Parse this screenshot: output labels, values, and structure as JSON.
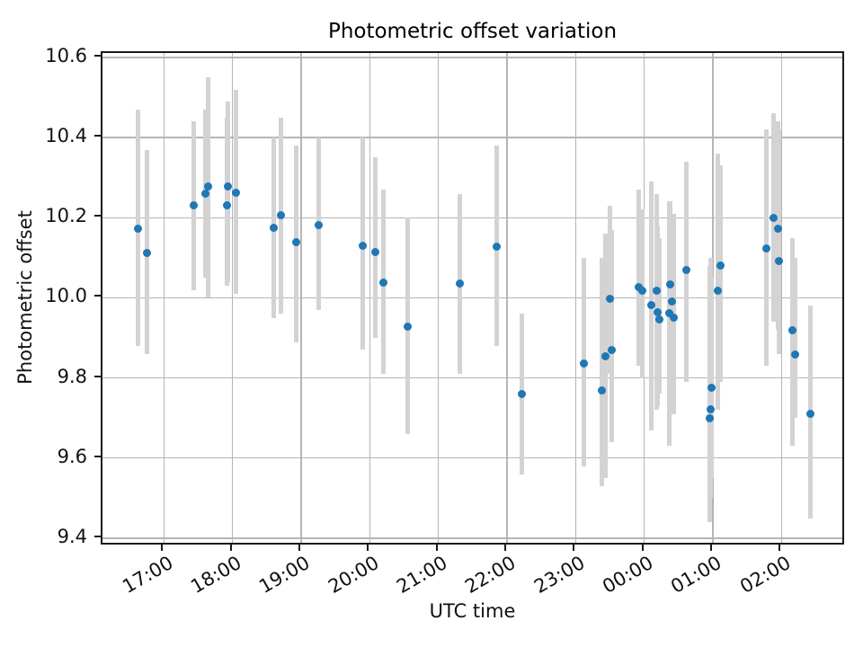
{
  "chart_data": {
    "type": "scatter",
    "title": "Photometric offset variation",
    "xlabel": "UTC time",
    "ylabel": "Photometric offset",
    "grid": true,
    "legend": false,
    "marker_color": "#1f77b4",
    "errorbar_color": "#d3d3d3",
    "grid_color": "#b5b5b5",
    "x_tick_labels": [
      "17:00",
      "18:00",
      "19:00",
      "20:00",
      "21:00",
      "22:00",
      "23:00",
      "00:00",
      "01:00",
      "02:00"
    ],
    "y_ticks": [
      9.4,
      9.6,
      9.8,
      10.0,
      10.2,
      10.4,
      10.6
    ],
    "ylim": [
      9.38,
      10.61
    ],
    "xlim_utc": [
      "16:06",
      "02:56"
    ],
    "points": [
      {
        "utc": "16:37",
        "y": 10.172,
        "err_lo": 9.88,
        "err_hi": 10.47
      },
      {
        "utc": "16:45",
        "y": 10.111,
        "err_lo": 9.86,
        "err_hi": 10.37
      },
      {
        "utc": "17:26",
        "y": 10.231,
        "err_lo": 10.02,
        "err_hi": 10.44
      },
      {
        "utc": "17:36",
        "y": 10.261,
        "err_lo": 10.05,
        "err_hi": 10.47
      },
      {
        "utc": "17:39",
        "y": 10.277,
        "err_lo": 10.0,
        "err_hi": 10.55
      },
      {
        "utc": "17:55",
        "y": 10.232,
        "err_lo": 10.03,
        "err_hi": 10.45
      },
      {
        "utc": "17:56",
        "y": 10.277,
        "err_lo": 10.04,
        "err_hi": 10.49
      },
      {
        "utc": "18:03",
        "y": 10.263,
        "err_lo": 10.01,
        "err_hi": 10.52
      },
      {
        "utc": "18:36",
        "y": 10.174,
        "err_lo": 9.95,
        "err_hi": 10.4
      },
      {
        "utc": "18:42",
        "y": 10.207,
        "err_lo": 9.96,
        "err_hi": 10.45
      },
      {
        "utc": "18:56",
        "y": 10.14,
        "err_lo": 9.89,
        "err_hi": 10.38
      },
      {
        "utc": "19:15",
        "y": 10.182,
        "err_lo": 9.97,
        "err_hi": 10.4
      },
      {
        "utc": "19:54",
        "y": 10.13,
        "err_lo": 9.87,
        "err_hi": 10.4
      },
      {
        "utc": "20:05",
        "y": 10.115,
        "err_lo": 9.9,
        "err_hi": 10.35
      },
      {
        "utc": "20:12",
        "y": 10.038,
        "err_lo": 9.81,
        "err_hi": 10.27
      },
      {
        "utc": "20:33",
        "y": 9.929,
        "err_lo": 9.66,
        "err_hi": 10.2
      },
      {
        "utc": "21:19",
        "y": 10.036,
        "err_lo": 9.81,
        "err_hi": 10.26
      },
      {
        "utc": "21:51",
        "y": 10.128,
        "err_lo": 9.88,
        "err_hi": 10.38
      },
      {
        "utc": "22:13",
        "y": 9.759,
        "err_lo": 9.56,
        "err_hi": 9.96
      },
      {
        "utc": "23:07",
        "y": 9.836,
        "err_lo": 9.58,
        "err_hi": 10.1
      },
      {
        "utc": "23:23",
        "y": 9.768,
        "err_lo": 9.53,
        "err_hi": 10.1
      },
      {
        "utc": "23:26",
        "y": 9.855,
        "err_lo": 9.55,
        "err_hi": 10.16
      },
      {
        "utc": "23:30",
        "y": 9.998,
        "err_lo": 9.81,
        "err_hi": 10.23
      },
      {
        "utc": "23:32",
        "y": 9.87,
        "err_lo": 9.64,
        "err_hi": 10.17
      },
      {
        "utc": "23:55",
        "y": 10.027,
        "err_lo": 9.83,
        "err_hi": 10.27
      },
      {
        "utc": "23:58",
        "y": 10.019,
        "err_lo": 9.8,
        "err_hi": 10.22
      },
      {
        "utc": "00:06",
        "y": 9.982,
        "err_lo": 9.67,
        "err_hi": 10.29
      },
      {
        "utc": "00:11",
        "y": 10.018,
        "err_lo": 9.72,
        "err_hi": 10.26
      },
      {
        "utc": "00:12",
        "y": 9.964,
        "err_lo": 9.73,
        "err_hi": 10.18
      },
      {
        "utc": "00:13",
        "y": 9.947,
        "err_lo": 9.76,
        "err_hi": 10.15
      },
      {
        "utc": "00:22",
        "y": 9.962,
        "err_lo": 9.63,
        "err_hi": 10.24
      },
      {
        "utc": "00:23",
        "y": 10.034,
        "err_lo": 9.71,
        "err_hi": 10.24
      },
      {
        "utc": "00:24",
        "y": 9.99,
        "err_lo": 9.78,
        "err_hi": 10.21
      },
      {
        "utc": "00:26",
        "y": 9.95,
        "err_lo": 9.71,
        "err_hi": 10.21
      },
      {
        "utc": "00:37",
        "y": 10.069,
        "err_lo": 9.79,
        "err_hi": 10.34
      },
      {
        "utc": "00:57",
        "y": 9.7,
        "err_lo": 9.44,
        "err_hi": 10.08
      },
      {
        "utc": "00:58",
        "y": 9.721,
        "err_lo": 9.5,
        "err_hi": 10.1
      },
      {
        "utc": "00:59",
        "y": 9.775,
        "err_lo": 9.55,
        "err_hi": 10.05
      },
      {
        "utc": "01:04",
        "y": 10.017,
        "err_lo": 9.72,
        "err_hi": 10.36
      },
      {
        "utc": "01:07",
        "y": 10.081,
        "err_lo": 9.79,
        "err_hi": 10.33
      },
      {
        "utc": "01:47",
        "y": 10.124,
        "err_lo": 9.83,
        "err_hi": 10.42
      },
      {
        "utc": "01:53",
        "y": 10.199,
        "err_lo": 9.94,
        "err_hi": 10.46
      },
      {
        "utc": "01:57",
        "y": 10.173,
        "err_lo": 9.92,
        "err_hi": 10.44
      },
      {
        "utc": "01:58",
        "y": 10.091,
        "err_lo": 9.86,
        "err_hi": 10.42
      },
      {
        "utc": "02:10",
        "y": 9.92,
        "err_lo": 9.63,
        "err_hi": 10.15
      },
      {
        "utc": "02:12",
        "y": 9.858,
        "err_lo": 9.7,
        "err_hi": 10.1
      },
      {
        "utc": "02:25",
        "y": 9.711,
        "err_lo": 9.45,
        "err_hi": 9.98
      }
    ]
  }
}
